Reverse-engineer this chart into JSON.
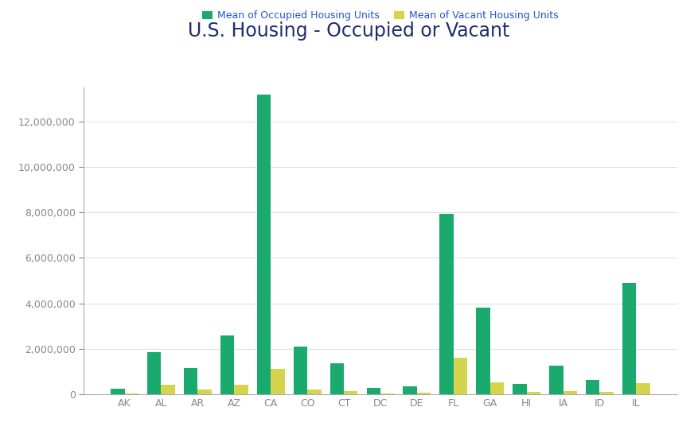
{
  "title": "U.S. Housing - Occupied or Vacant",
  "title_color": "#1e2d6e",
  "title_fontsize": 17,
  "categories": [
    "AK",
    "AL",
    "AR",
    "AZ",
    "CA",
    "CO",
    "CT",
    "DC",
    "DE",
    "FL",
    "GA",
    "HI",
    "IA",
    "ID",
    "IL"
  ],
  "occupied": [
    250000,
    1850000,
    1150000,
    2600000,
    13200000,
    2100000,
    1350000,
    280000,
    350000,
    7950000,
    3800000,
    450000,
    1250000,
    620000,
    4900000
  ],
  "vacant": [
    30000,
    400000,
    200000,
    420000,
    1100000,
    220000,
    120000,
    20000,
    50000,
    1600000,
    520000,
    90000,
    120000,
    100000,
    480000
  ],
  "occupied_color": "#1aaa6e",
  "vacant_color": "#d4d44e",
  "bar_width": 0.38,
  "ylim": [
    0,
    13500000
  ],
  "yticks": [
    0,
    2000000,
    4000000,
    6000000,
    8000000,
    10000000,
    12000000
  ],
  "legend_occupied": "Mean of Occupied Housing Units",
  "legend_vacant": "Mean of Vacant Housing Units",
  "legend_text_color": "#2255cc",
  "bg_color": "#ffffff",
  "spine_color": "#aaaaaa",
  "grid_color": "#dddddd",
  "tick_color": "#888888",
  "xtick_fontsize": 9,
  "ytick_fontsize": 9
}
